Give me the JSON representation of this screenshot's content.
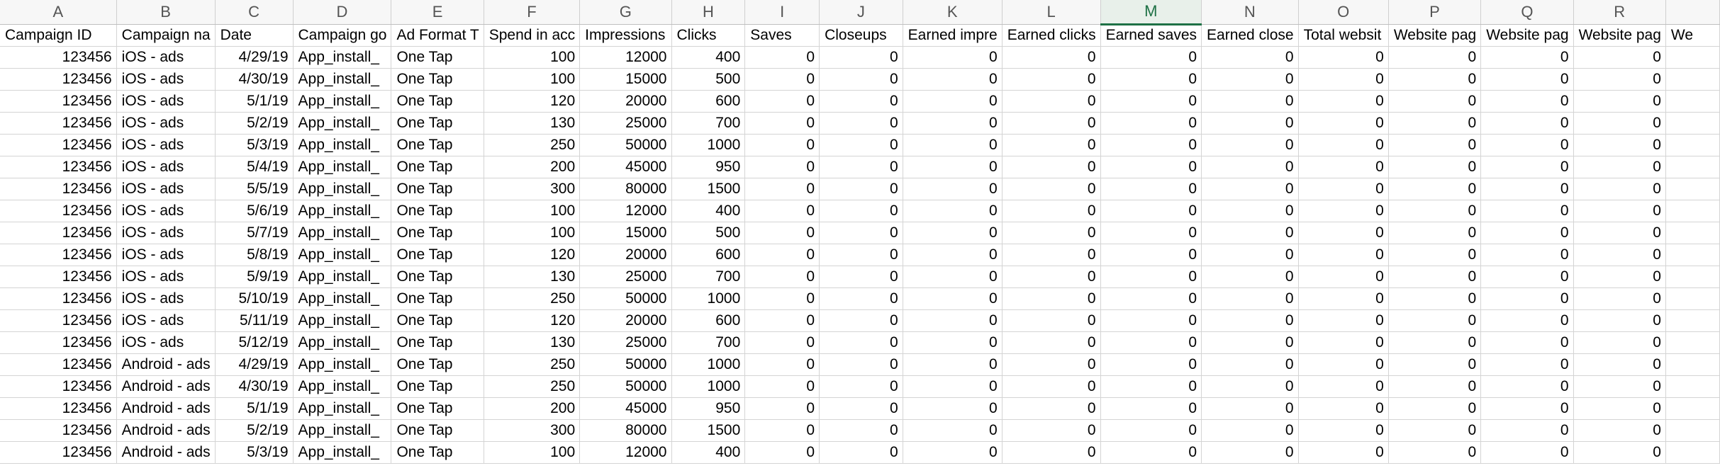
{
  "app": {
    "active_column": "M"
  },
  "columns": [
    "A",
    "B",
    "C",
    "D",
    "E",
    "F",
    "G",
    "H",
    "I",
    "J",
    "K",
    "L",
    "M",
    "N",
    "O",
    "P",
    "Q",
    "R",
    ""
  ],
  "field_headers": [
    "Campaign ID",
    "Campaign na",
    "Date",
    "Campaign go",
    "Ad Format T",
    "Spend in acc",
    "Impressions",
    "Clicks",
    "Saves",
    "Closeups",
    "Earned impre",
    "Earned clicks",
    "Earned saves",
    "Earned close",
    "Total websit",
    "Website pag",
    "Website pag",
    "Website pag",
    "We"
  ],
  "rows": [
    {
      "id": "123456",
      "name": "iOS - ads",
      "date": "4/29/19",
      "goal": "App_install_",
      "format": "One Tap",
      "spend": "100",
      "impressions": "12000",
      "clicks": "400",
      "saves": "0",
      "closeups": "0",
      "earned_impr": "0",
      "earned_clicks": "0",
      "earned_saves": "0",
      "earned_closeups": "0",
      "total_website": "0",
      "website_p1": "0",
      "website_p2": "0",
      "website_p3": "0"
    },
    {
      "id": "123456",
      "name": "iOS - ads",
      "date": "4/30/19",
      "goal": "App_install_",
      "format": "One Tap",
      "spend": "100",
      "impressions": "15000",
      "clicks": "500",
      "saves": "0",
      "closeups": "0",
      "earned_impr": "0",
      "earned_clicks": "0",
      "earned_saves": "0",
      "earned_closeups": "0",
      "total_website": "0",
      "website_p1": "0",
      "website_p2": "0",
      "website_p3": "0"
    },
    {
      "id": "123456",
      "name": "iOS - ads",
      "date": "5/1/19",
      "goal": "App_install_",
      "format": "One Tap",
      "spend": "120",
      "impressions": "20000",
      "clicks": "600",
      "saves": "0",
      "closeups": "0",
      "earned_impr": "0",
      "earned_clicks": "0",
      "earned_saves": "0",
      "earned_closeups": "0",
      "total_website": "0",
      "website_p1": "0",
      "website_p2": "0",
      "website_p3": "0"
    },
    {
      "id": "123456",
      "name": "iOS - ads",
      "date": "5/2/19",
      "goal": "App_install_",
      "format": "One Tap",
      "spend": "130",
      "impressions": "25000",
      "clicks": "700",
      "saves": "0",
      "closeups": "0",
      "earned_impr": "0",
      "earned_clicks": "0",
      "earned_saves": "0",
      "earned_closeups": "0",
      "total_website": "0",
      "website_p1": "0",
      "website_p2": "0",
      "website_p3": "0"
    },
    {
      "id": "123456",
      "name": "iOS - ads",
      "date": "5/3/19",
      "goal": "App_install_",
      "format": "One Tap",
      "spend": "250",
      "impressions": "50000",
      "clicks": "1000",
      "saves": "0",
      "closeups": "0",
      "earned_impr": "0",
      "earned_clicks": "0",
      "earned_saves": "0",
      "earned_closeups": "0",
      "total_website": "0",
      "website_p1": "0",
      "website_p2": "0",
      "website_p3": "0"
    },
    {
      "id": "123456",
      "name": "iOS - ads",
      "date": "5/4/19",
      "goal": "App_install_",
      "format": "One Tap",
      "spend": "200",
      "impressions": "45000",
      "clicks": "950",
      "saves": "0",
      "closeups": "0",
      "earned_impr": "0",
      "earned_clicks": "0",
      "earned_saves": "0",
      "earned_closeups": "0",
      "total_website": "0",
      "website_p1": "0",
      "website_p2": "0",
      "website_p3": "0"
    },
    {
      "id": "123456",
      "name": "iOS - ads",
      "date": "5/5/19",
      "goal": "App_install_",
      "format": "One Tap",
      "spend": "300",
      "impressions": "80000",
      "clicks": "1500",
      "saves": "0",
      "closeups": "0",
      "earned_impr": "0",
      "earned_clicks": "0",
      "earned_saves": "0",
      "earned_closeups": "0",
      "total_website": "0",
      "website_p1": "0",
      "website_p2": "0",
      "website_p3": "0"
    },
    {
      "id": "123456",
      "name": "iOS - ads",
      "date": "5/6/19",
      "goal": "App_install_",
      "format": "One Tap",
      "spend": "100",
      "impressions": "12000",
      "clicks": "400",
      "saves": "0",
      "closeups": "0",
      "earned_impr": "0",
      "earned_clicks": "0",
      "earned_saves": "0",
      "earned_closeups": "0",
      "total_website": "0",
      "website_p1": "0",
      "website_p2": "0",
      "website_p3": "0"
    },
    {
      "id": "123456",
      "name": "iOS - ads",
      "date": "5/7/19",
      "goal": "App_install_",
      "format": "One Tap",
      "spend": "100",
      "impressions": "15000",
      "clicks": "500",
      "saves": "0",
      "closeups": "0",
      "earned_impr": "0",
      "earned_clicks": "0",
      "earned_saves": "0",
      "earned_closeups": "0",
      "total_website": "0",
      "website_p1": "0",
      "website_p2": "0",
      "website_p3": "0"
    },
    {
      "id": "123456",
      "name": "iOS - ads",
      "date": "5/8/19",
      "goal": "App_install_",
      "format": "One Tap",
      "spend": "120",
      "impressions": "20000",
      "clicks": "600",
      "saves": "0",
      "closeups": "0",
      "earned_impr": "0",
      "earned_clicks": "0",
      "earned_saves": "0",
      "earned_closeups": "0",
      "total_website": "0",
      "website_p1": "0",
      "website_p2": "0",
      "website_p3": "0"
    },
    {
      "id": "123456",
      "name": "iOS - ads",
      "date": "5/9/19",
      "goal": "App_install_",
      "format": "One Tap",
      "spend": "130",
      "impressions": "25000",
      "clicks": "700",
      "saves": "0",
      "closeups": "0",
      "earned_impr": "0",
      "earned_clicks": "0",
      "earned_saves": "0",
      "earned_closeups": "0",
      "total_website": "0",
      "website_p1": "0",
      "website_p2": "0",
      "website_p3": "0"
    },
    {
      "id": "123456",
      "name": "iOS - ads",
      "date": "5/10/19",
      "goal": "App_install_",
      "format": "One Tap",
      "spend": "250",
      "impressions": "50000",
      "clicks": "1000",
      "saves": "0",
      "closeups": "0",
      "earned_impr": "0",
      "earned_clicks": "0",
      "earned_saves": "0",
      "earned_closeups": "0",
      "total_website": "0",
      "website_p1": "0",
      "website_p2": "0",
      "website_p3": "0"
    },
    {
      "id": "123456",
      "name": "iOS - ads",
      "date": "5/11/19",
      "goal": "App_install_",
      "format": "One Tap",
      "spend": "120",
      "impressions": "20000",
      "clicks": "600",
      "saves": "0",
      "closeups": "0",
      "earned_impr": "0",
      "earned_clicks": "0",
      "earned_saves": "0",
      "earned_closeups": "0",
      "total_website": "0",
      "website_p1": "0",
      "website_p2": "0",
      "website_p3": "0"
    },
    {
      "id": "123456",
      "name": "iOS - ads",
      "date": "5/12/19",
      "goal": "App_install_",
      "format": "One Tap",
      "spend": "130",
      "impressions": "25000",
      "clicks": "700",
      "saves": "0",
      "closeups": "0",
      "earned_impr": "0",
      "earned_clicks": "0",
      "earned_saves": "0",
      "earned_closeups": "0",
      "total_website": "0",
      "website_p1": "0",
      "website_p2": "0",
      "website_p3": "0"
    },
    {
      "id": "123456",
      "name": "Android - ads",
      "date": "4/29/19",
      "goal": "App_install_",
      "format": "One Tap",
      "spend": "250",
      "impressions": "50000",
      "clicks": "1000",
      "saves": "0",
      "closeups": "0",
      "earned_impr": "0",
      "earned_clicks": "0",
      "earned_saves": "0",
      "earned_closeups": "0",
      "total_website": "0",
      "website_p1": "0",
      "website_p2": "0",
      "website_p3": "0"
    },
    {
      "id": "123456",
      "name": "Android - ads",
      "date": "4/30/19",
      "goal": "App_install_",
      "format": "One Tap",
      "spend": "250",
      "impressions": "50000",
      "clicks": "1000",
      "saves": "0",
      "closeups": "0",
      "earned_impr": "0",
      "earned_clicks": "0",
      "earned_saves": "0",
      "earned_closeups": "0",
      "total_website": "0",
      "website_p1": "0",
      "website_p2": "0",
      "website_p3": "0"
    },
    {
      "id": "123456",
      "name": "Android - ads",
      "date": "5/1/19",
      "goal": "App_install_",
      "format": "One Tap",
      "spend": "200",
      "impressions": "45000",
      "clicks": "950",
      "saves": "0",
      "closeups": "0",
      "earned_impr": "0",
      "earned_clicks": "0",
      "earned_saves": "0",
      "earned_closeups": "0",
      "total_website": "0",
      "website_p1": "0",
      "website_p2": "0",
      "website_p3": "0"
    },
    {
      "id": "123456",
      "name": "Android - ads",
      "date": "5/2/19",
      "goal": "App_install_",
      "format": "One Tap",
      "spend": "300",
      "impressions": "80000",
      "clicks": "1500",
      "saves": "0",
      "closeups": "0",
      "earned_impr": "0",
      "earned_clicks": "0",
      "earned_saves": "0",
      "earned_closeups": "0",
      "total_website": "0",
      "website_p1": "0",
      "website_p2": "0",
      "website_p3": "0"
    },
    {
      "id": "123456",
      "name": "Android - ads",
      "date": "5/3/19",
      "goal": "App_install_",
      "format": "One Tap",
      "spend": "100",
      "impressions": "12000",
      "clicks": "400",
      "saves": "0",
      "closeups": "0",
      "earned_impr": "0",
      "earned_clicks": "0",
      "earned_saves": "0",
      "earned_closeups": "0",
      "total_website": "0",
      "website_p1": "0",
      "website_p2": "0",
      "website_p3": "0"
    }
  ]
}
